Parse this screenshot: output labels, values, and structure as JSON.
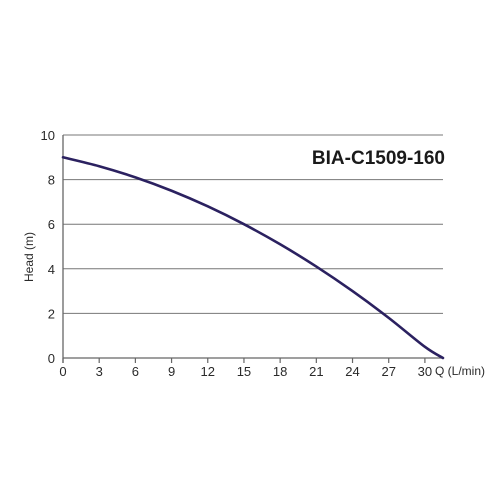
{
  "chart_data": {
    "type": "line",
    "title": "BIA-C1509-160",
    "xlabel": "Q (L/min)",
    "ylabel": "Head (m)",
    "xlim": [
      0,
      31.5
    ],
    "ylim": [
      0,
      10
    ],
    "x_ticks": [
      "0",
      "3",
      "6",
      "9",
      "12",
      "15",
      "18",
      "21",
      "24",
      "27",
      "30"
    ],
    "y_ticks": [
      "0",
      "2",
      "4",
      "6",
      "8",
      "10"
    ],
    "grid": "horizontal",
    "series": [
      {
        "color": "#2b2160",
        "x": [
          0,
          3,
          6,
          9,
          12,
          15,
          18,
          21,
          24,
          27,
          30,
          31.5
        ],
        "y": [
          9.0,
          8.6,
          8.1,
          7.5,
          6.8,
          6.0,
          5.1,
          4.1,
          3.0,
          1.8,
          0.5,
          0
        ]
      }
    ]
  }
}
